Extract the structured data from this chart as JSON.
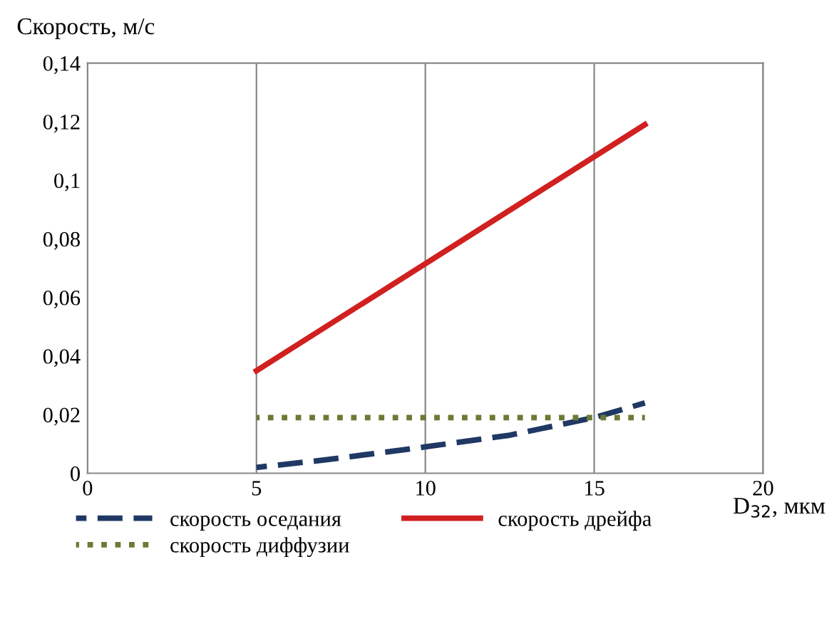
{
  "chart_data": {
    "type": "line",
    "ylabel": "Скорость, м/с",
    "xlabel": "D$_{32}$, мкм",
    "xlim": [
      0,
      20
    ],
    "xticks": [
      0,
      5,
      10,
      15,
      20
    ],
    "ylim": [
      0,
      0.14
    ],
    "yticks": [
      {
        "value": 0,
        "label": "0"
      },
      {
        "value": 0.02,
        "label": "0,02"
      },
      {
        "value": 0.04,
        "label": "0,04"
      },
      {
        "value": 0.06,
        "label": "0,06"
      },
      {
        "value": 0.08,
        "label": "0,08"
      },
      {
        "value": 0.1,
        "label": "0,1"
      },
      {
        "value": 0.12,
        "label": "0,12"
      },
      {
        "value": 0.14,
        "label": "0,14"
      }
    ],
    "grid": "x",
    "legend": "bottom",
    "series": [
      {
        "name": "скорость оседания",
        "color": "#1f3864",
        "line_style": "dashed",
        "x": [
          5,
          7,
          10,
          12.5,
          15,
          16.5
        ],
        "values": [
          0.002,
          0.0045,
          0.009,
          0.013,
          0.019,
          0.024
        ]
      },
      {
        "name": "скорость дрейфа",
        "color": "#d02020",
        "line_style": "solid",
        "x": [
          5,
          16.5
        ],
        "values": [
          0.035,
          0.119
        ]
      },
      {
        "name": "скорость диффузии",
        "color": "#6b7a35",
        "line_style": "dotted",
        "x": [
          5,
          16.5
        ],
        "values": [
          0.019,
          0.019
        ]
      }
    ]
  }
}
